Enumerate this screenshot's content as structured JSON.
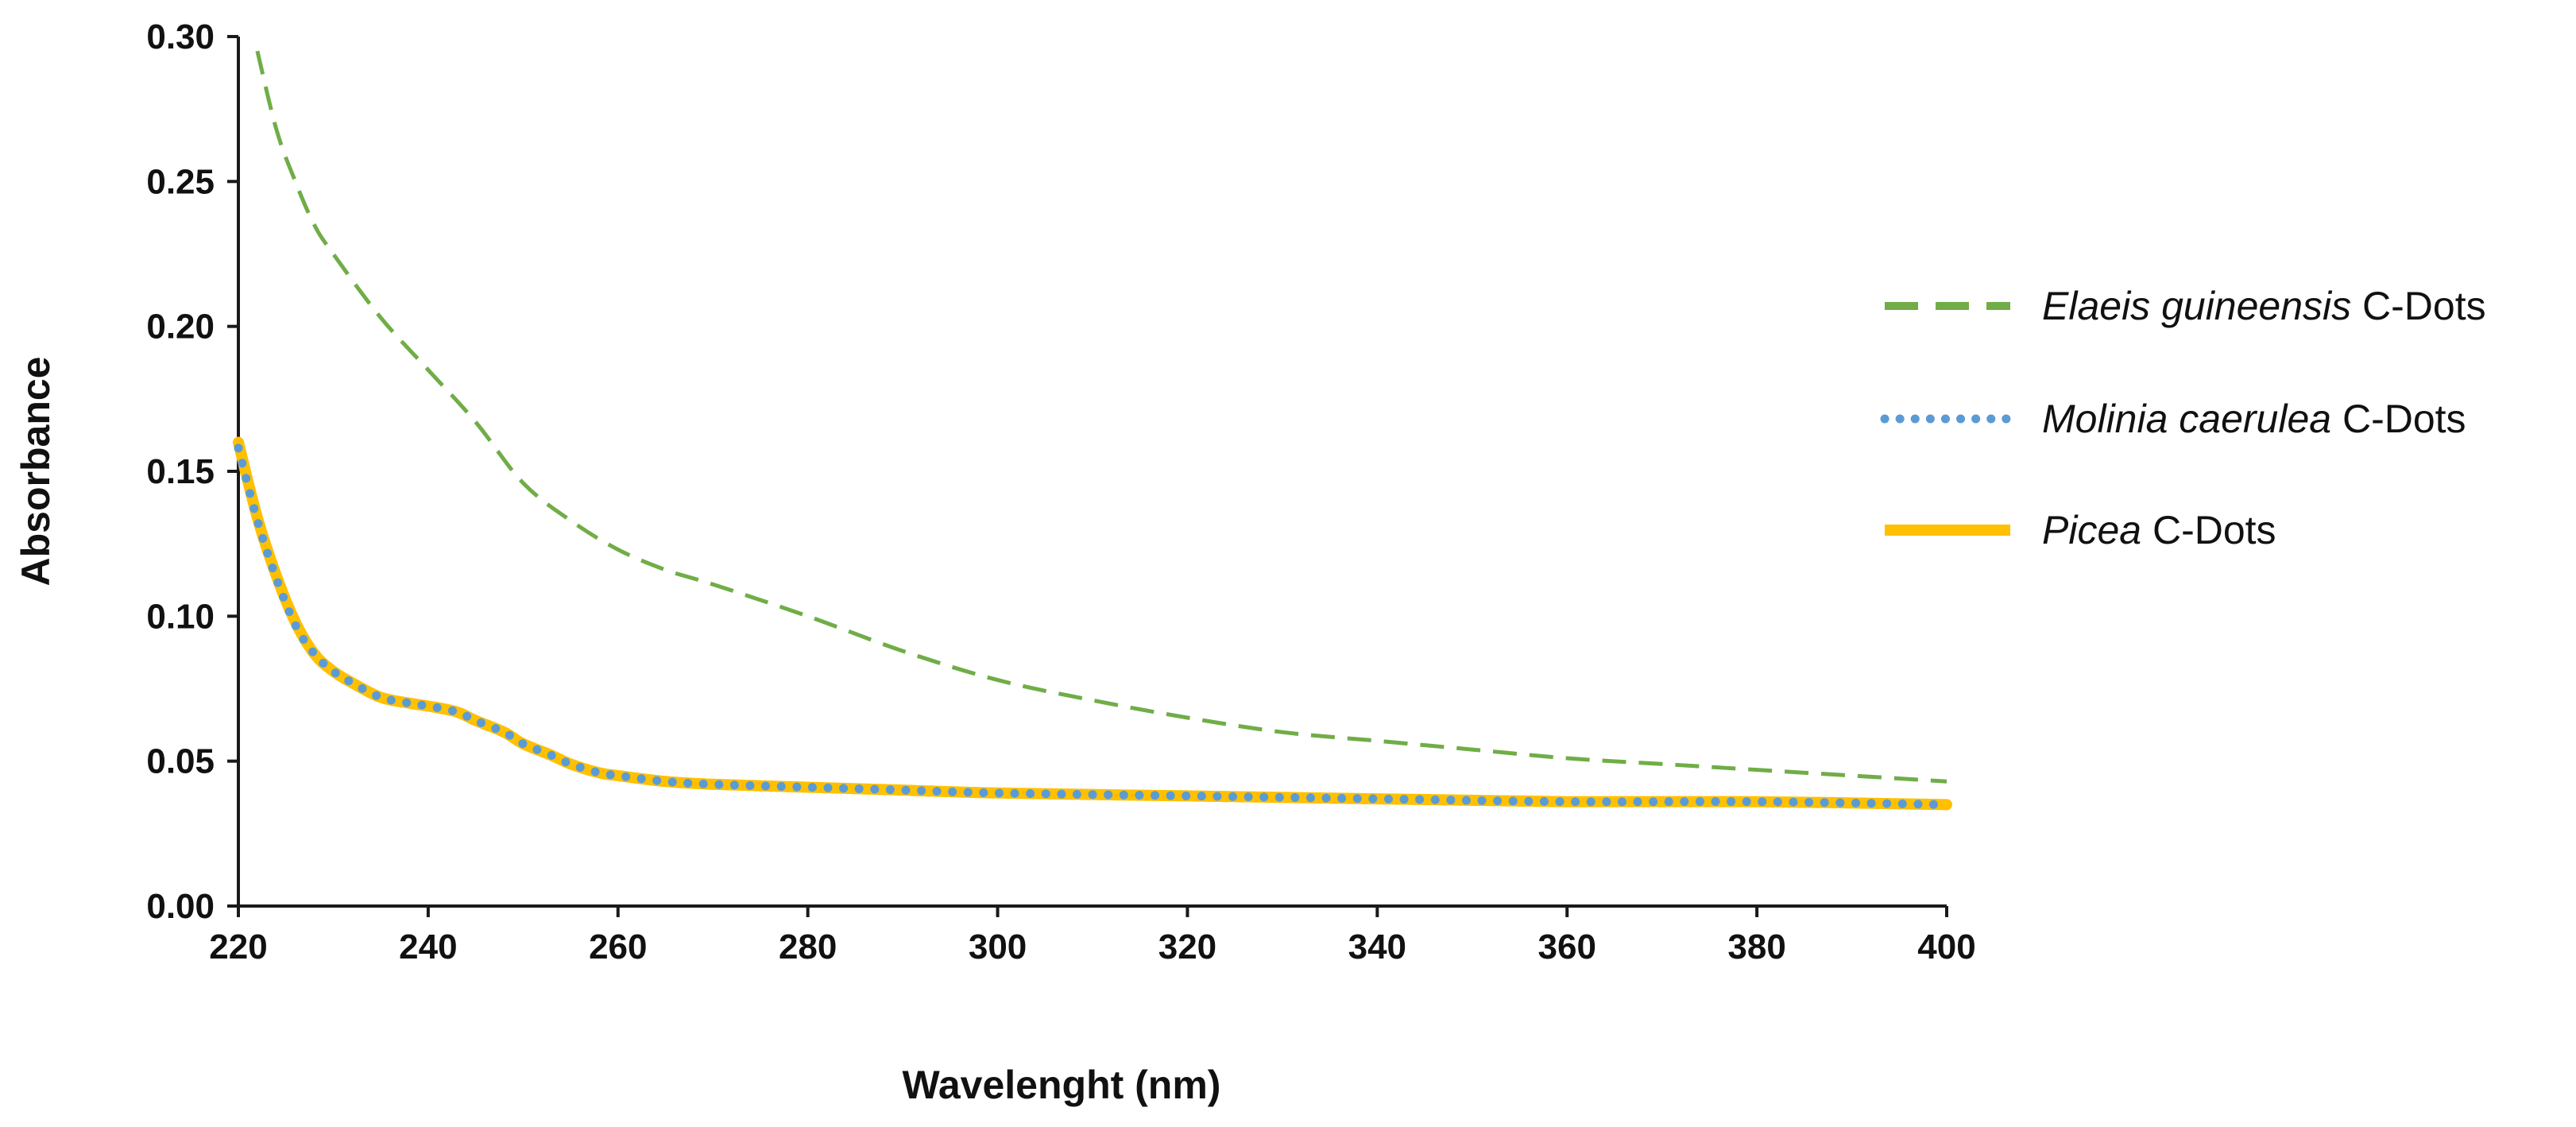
{
  "chart_data": {
    "type": "line",
    "title": "",
    "xlabel": "Wavelenght (nm)",
    "ylabel": "Absorbance",
    "xlim": [
      220,
      400
    ],
    "ylim": [
      0,
      0.3
    ],
    "x_ticks": [
      "220",
      "240",
      "260",
      "280",
      "300",
      "320",
      "340",
      "360",
      "380",
      "400"
    ],
    "y_ticks": [
      "0.00",
      "0.05",
      "0.10",
      "0.15",
      "0.20",
      "0.25",
      "0.30"
    ],
    "grid": false,
    "legend_position": "right",
    "series": [
      {
        "name_italic": "Elaeis guineensis",
        "name_suffix": " C-Dots",
        "style": "dashed",
        "color": "#70ad47",
        "x": [
          222,
          224,
          226,
          228,
          230,
          235,
          240,
          245,
          250,
          255,
          260,
          265,
          270,
          280,
          290,
          300,
          310,
          320,
          330,
          340,
          350,
          360,
          370,
          380,
          390,
          400
        ],
        "y": [
          0.295,
          0.268,
          0.25,
          0.235,
          0.225,
          0.203,
          0.185,
          0.167,
          0.146,
          0.133,
          0.123,
          0.116,
          0.111,
          0.1,
          0.088,
          0.078,
          0.071,
          0.065,
          0.06,
          0.057,
          0.054,
          0.051,
          0.049,
          0.047,
          0.045,
          0.043
        ]
      },
      {
        "name_italic": "Molinia caerulea",
        "name_suffix": " C-Dots",
        "style": "dotted",
        "color": "#5b9bd5",
        "x": [
          220,
          222,
          224,
          226,
          228,
          230,
          232,
          235,
          238,
          240,
          243,
          245,
          248,
          250,
          253,
          255,
          258,
          260,
          265,
          270,
          280,
          290,
          300,
          320,
          340,
          360,
          380,
          400
        ],
        "y": [
          0.158,
          0.133,
          0.113,
          0.097,
          0.087,
          0.081,
          0.077,
          0.072,
          0.07,
          0.069,
          0.067,
          0.064,
          0.06,
          0.056,
          0.052,
          0.049,
          0.046,
          0.045,
          0.043,
          0.042,
          0.041,
          0.04,
          0.039,
          0.038,
          0.037,
          0.036,
          0.036,
          0.035
        ]
      },
      {
        "name_italic": "Picea",
        "name_suffix": " C-Dots",
        "style": "solid",
        "color": "#ffc000",
        "x": [
          220,
          222,
          224,
          226,
          228,
          230,
          232,
          235,
          238,
          240,
          243,
          245,
          248,
          250,
          253,
          255,
          258,
          260,
          265,
          270,
          280,
          290,
          300,
          320,
          340,
          360,
          380,
          400
        ],
        "y": [
          0.16,
          0.134,
          0.114,
          0.098,
          0.087,
          0.081,
          0.077,
          0.072,
          0.07,
          0.069,
          0.067,
          0.064,
          0.06,
          0.056,
          0.052,
          0.049,
          0.046,
          0.045,
          0.043,
          0.042,
          0.041,
          0.04,
          0.039,
          0.038,
          0.037,
          0.036,
          0.036,
          0.035
        ]
      }
    ]
  }
}
